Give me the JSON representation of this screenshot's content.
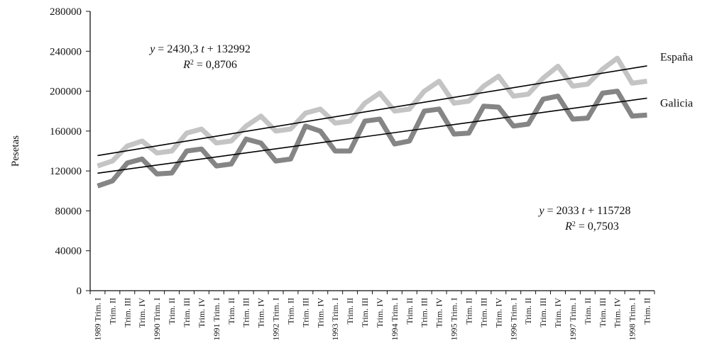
{
  "chart_data": {
    "type": "line",
    "y_label": "Pesetas",
    "categories": [
      "1989 Trim. I",
      "Trim. II",
      "Trim. III",
      "Trim. IV",
      "1990 Trim. I",
      "Trim. II",
      "Trim. III",
      "Trim. IV",
      "1991 Trim. I",
      "Trim. II",
      "Trim. III",
      "Trim. IV",
      "1992 Trim. I",
      "Trim. II",
      "Trim. III",
      "Trim. IV",
      "1993 Trim. I",
      "Trim. II",
      "Trim. III",
      "Trim. IV",
      "1994 Trim. I",
      "Trim. II",
      "Trim. III",
      "Trim. IV",
      "1995 Trim. I",
      "Trim. II",
      "Trim. III",
      "Trim. IV",
      "1996 Trim. I",
      "Trim. II",
      "Trim. III",
      "Trim. IV",
      "1997 Trim. I",
      "Trim. II",
      "Trim. III",
      "Trim. IV",
      "1998 Trim. I",
      "Trim. II"
    ],
    "series": [
      {
        "name": "España",
        "color": "#c4c4c4",
        "values": [
          125000,
          130000,
          145000,
          150000,
          138000,
          140000,
          158000,
          162000,
          148000,
          150000,
          165000,
          175000,
          160000,
          162000,
          178000,
          182000,
          168000,
          170000,
          188000,
          198000,
          180000,
          182000,
          200000,
          210000,
          188000,
          190000,
          205000,
          215000,
          195000,
          197000,
          213000,
          225000,
          205000,
          207000,
          222000,
          233000,
          208000,
          210000
        ]
      },
      {
        "name": "Galicia",
        "color": "#858585",
        "values": [
          105000,
          110000,
          128000,
          132000,
          117000,
          118000,
          140000,
          142000,
          125000,
          127000,
          152000,
          148000,
          130000,
          132000,
          165000,
          160000,
          140000,
          140000,
          170000,
          172000,
          147000,
          150000,
          180000,
          182000,
          157000,
          158000,
          185000,
          184000,
          165000,
          167000,
          192000,
          195000,
          172000,
          173000,
          198000,
          200000,
          175000,
          176000
        ]
      }
    ],
    "equation_format": {
      "y": "y",
      "eq": "=",
      "t": "t",
      "plus": "+",
      "r": "R",
      "sup": "2"
    },
    "trends": [
      {
        "slope": {
          "value": 2430.3,
          "label": "2430,3"
        },
        "intercept": 132992,
        "r2": {
          "value": 0.8706,
          "label": "0,8706"
        }
      },
      {
        "slope": {
          "value": 2033,
          "label": "2033"
        },
        "intercept": 115728,
        "r2": {
          "value": 0.7503,
          "label": "0,7503"
        }
      }
    ],
    "ylim": [
      0,
      280000
    ],
    "yticks": [
      0,
      40000,
      80000,
      120000,
      160000,
      200000,
      240000,
      280000
    ],
    "grid": false
  }
}
